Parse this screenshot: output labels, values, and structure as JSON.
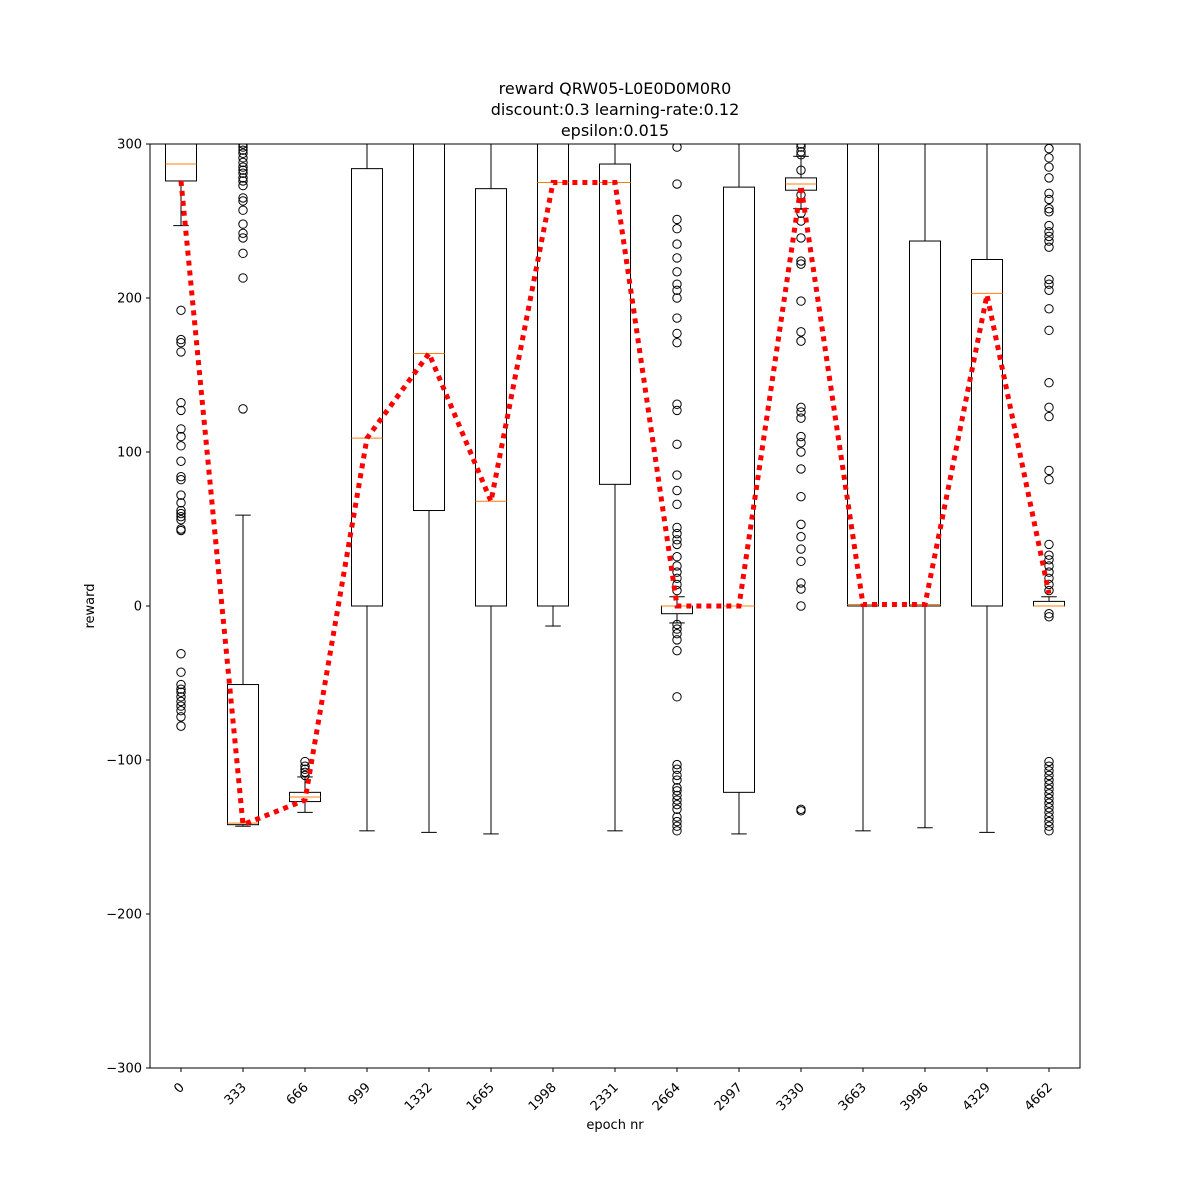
{
  "chart_data": {
    "type": "box",
    "title_lines": [
      "reward QRW05-L0E0D0M0R0",
      "discount:0.3 learning-rate:0.12",
      "epsilon:0.015"
    ],
    "xlabel": "epoch nr",
    "ylabel": "reward",
    "ylim": [
      -300,
      300
    ],
    "yticks": [
      -300,
      -200,
      -100,
      0,
      100,
      200,
      300
    ],
    "categories": [
      "0",
      "333",
      "666",
      "999",
      "1332",
      "1665",
      "1998",
      "2331",
      "2664",
      "2997",
      "3330",
      "3663",
      "3996",
      "4329",
      "4662"
    ],
    "boxes": [
      {
        "whisker_low": 247,
        "q1": 276,
        "median": 287,
        "q3": 300,
        "whisker_high": 300,
        "outliers": [
          192,
          173,
          171,
          165,
          132,
          127,
          115,
          110,
          104,
          94,
          84,
          82,
          72,
          67,
          62,
          60,
          58,
          56,
          50,
          49,
          -31,
          -43,
          -51,
          -54,
          -56,
          -59,
          -62,
          -65,
          -68,
          -72,
          -78
        ]
      },
      {
        "whisker_low": -143,
        "q1": -142,
        "median": -141,
        "q3": -51,
        "whisker_high": 59,
        "outliers": [
          300,
          298,
          296,
          294,
          291,
          288,
          285,
          283,
          281,
          278,
          276,
          273,
          265,
          263,
          257,
          248,
          242,
          239,
          229,
          213,
          128
        ]
      },
      {
        "whisker_low": -134,
        "q1": -127,
        "median": -124,
        "q3": -121,
        "whisker_high": -111,
        "outliers": [
          -101,
          -104,
          -106,
          -108,
          -110
        ]
      },
      {
        "whisker_low": -146,
        "q1": 0,
        "median": 109,
        "q3": 284,
        "whisker_high": 300,
        "outliers": []
      },
      {
        "whisker_low": -147,
        "q1": 62,
        "median": 164,
        "q3": 300,
        "whisker_high": 300,
        "outliers": []
      },
      {
        "whisker_low": -148,
        "q1": 0,
        "median": 68,
        "q3": 271,
        "whisker_high": 300,
        "outliers": []
      },
      {
        "whisker_low": -13,
        "q1": 0,
        "median": 275,
        "q3": 300,
        "whisker_high": 300,
        "outliers": []
      },
      {
        "whisker_low": -146,
        "q1": 79,
        "median": 275,
        "q3": 287,
        "whisker_high": 300,
        "outliers": []
      },
      {
        "whisker_low": -11,
        "q1": -5,
        "median": 0,
        "q3": 0,
        "whisker_high": 6,
        "outliers": [
          298,
          274,
          251,
          245,
          235,
          226,
          217,
          209,
          205,
          200,
          187,
          177,
          171,
          131,
          127,
          105,
          85,
          75,
          66,
          51,
          47,
          43,
          40,
          32,
          26,
          22,
          18,
          14,
          10,
          -12,
          -15,
          -18,
          -22,
          -29,
          -59,
          -103,
          -106,
          -110,
          -113,
          -118,
          -120,
          -123,
          -126,
          -129,
          -132,
          -137,
          -140,
          -143,
          -146
        ]
      },
      {
        "whisker_low": -148,
        "q1": -121,
        "median": 0,
        "q3": 272,
        "whisker_high": 300,
        "outliers": []
      },
      {
        "whisker_low": 258,
        "q1": 270,
        "median": 274,
        "q3": 278,
        "whisker_high": 292,
        "outliers": [
          300,
          298,
          295,
          293,
          283,
          267,
          255,
          250,
          239,
          224,
          222,
          198,
          178,
          172,
          129,
          126,
          122,
          110,
          106,
          100,
          89,
          71,
          53,
          45,
          37,
          29,
          15,
          11,
          0,
          -132,
          -133
        ]
      },
      {
        "whisker_low": -146,
        "q1": 0,
        "median": 1,
        "q3": 300,
        "whisker_high": 300,
        "outliers": []
      },
      {
        "whisker_low": -144,
        "q1": 0,
        "median": 1,
        "q3": 237,
        "whisker_high": 300,
        "outliers": []
      },
      {
        "whisker_low": -147,
        "q1": 0,
        "median": 203,
        "q3": 225,
        "whisker_high": 300,
        "outliers": []
      },
      {
        "whisker_low": 0,
        "q1": 0,
        "median": 0,
        "q3": 3,
        "whisker_high": 6,
        "outliers": [
          297,
          291,
          285,
          278,
          268,
          264,
          258,
          256,
          247,
          243,
          240,
          237,
          233,
          212,
          209,
          205,
          193,
          179,
          145,
          129,
          123,
          88,
          82,
          40,
          33,
          30,
          26,
          22,
          18,
          14,
          10,
          -5,
          -7,
          -101,
          -104,
          -107,
          -110,
          -113,
          -116,
          -119,
          -122,
          -125,
          -128,
          -131,
          -134,
          -137,
          -140,
          -143,
          -146
        ]
      }
    ],
    "mean_line": {
      "values": [
        276,
        -142,
        -126,
        109,
        164,
        68,
        275,
        275,
        0,
        0,
        273,
        1,
        1,
        202,
        8
      ],
      "color": "#ff0000",
      "style": "dotted"
    },
    "colors": {
      "box": "#000000",
      "median": "#ff7f0e",
      "mean_line": "#ff0000"
    }
  }
}
